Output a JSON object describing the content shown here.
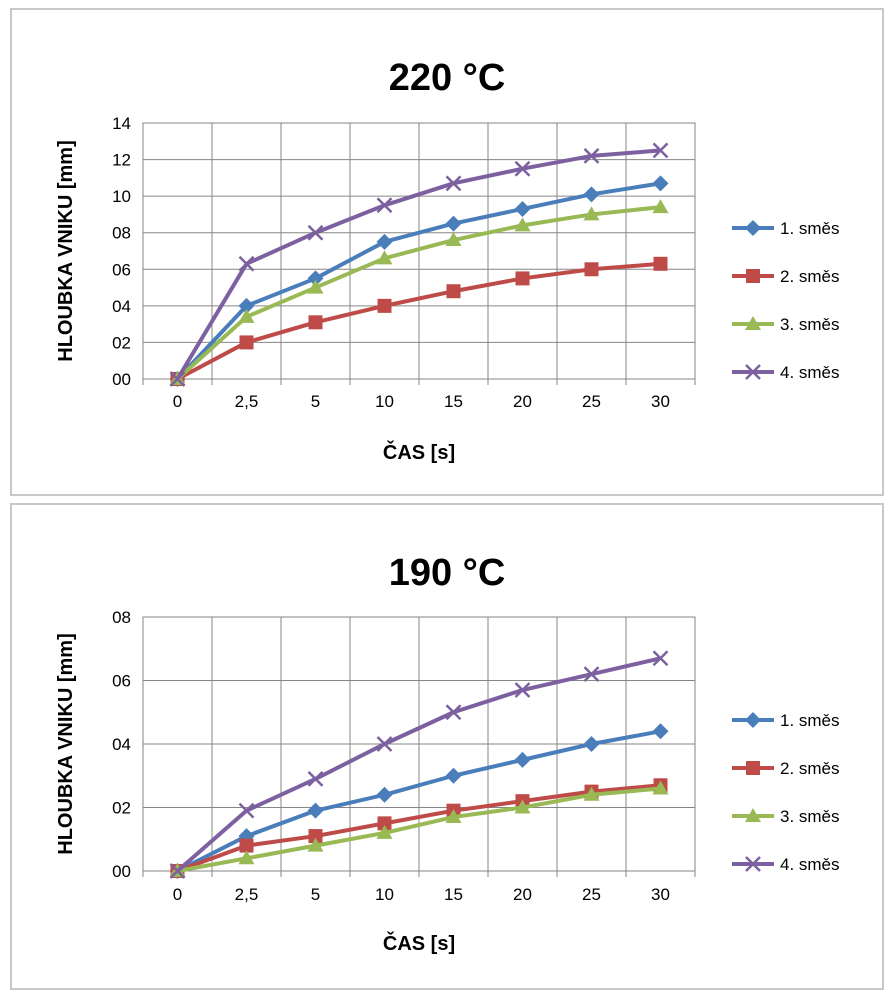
{
  "chart_data": [
    {
      "type": "line",
      "title": "220 °C",
      "xlabel": "ČAS [s]",
      "ylabel": "HLOUBKA VNIKU [mm]",
      "categories": [
        "0",
        "2,5",
        "5",
        "10",
        "15",
        "20",
        "25",
        "30"
      ],
      "ylim": [
        0,
        14
      ],
      "yticks": [
        0,
        2,
        4,
        6,
        8,
        10,
        12,
        14
      ],
      "ytick_labels": [
        "00",
        "02",
        "04",
        "06",
        "08",
        "10",
        "12",
        "14"
      ],
      "grid": true,
      "legend_position": "right",
      "series": [
        {
          "name": "1. směs",
          "color": "#4a7ebb",
          "marker": "diamond",
          "values": [
            0,
            4.0,
            5.5,
            7.5,
            8.5,
            9.3,
            10.1,
            10.7
          ]
        },
        {
          "name": "2. směs",
          "color": "#be4b48",
          "marker": "square",
          "values": [
            0,
            2.0,
            3.1,
            4.0,
            4.8,
            5.5,
            6.0,
            6.3
          ]
        },
        {
          "name": "3. směs",
          "color": "#98b954",
          "marker": "triangle",
          "values": [
            0,
            3.4,
            5.0,
            6.6,
            7.6,
            8.4,
            9.0,
            9.4
          ]
        },
        {
          "name": "4. směs",
          "color": "#7d60a0",
          "marker": "x",
          "values": [
            0,
            6.3,
            8.0,
            9.5,
            10.7,
            11.5,
            12.2,
            12.5
          ]
        }
      ]
    },
    {
      "type": "line",
      "title": "190 °C",
      "xlabel": "ČAS [s]",
      "ylabel": "HLOUBKA VNIKU [mm]",
      "categories": [
        "0",
        "2,5",
        "5",
        "10",
        "15",
        "20",
        "25",
        "30"
      ],
      "ylim": [
        0,
        8
      ],
      "yticks": [
        0,
        2,
        4,
        6,
        8
      ],
      "ytick_labels": [
        "00",
        "02",
        "04",
        "06",
        "08"
      ],
      "grid": true,
      "legend_position": "right",
      "series": [
        {
          "name": "1. směs",
          "color": "#4a7ebb",
          "marker": "diamond",
          "values": [
            0,
            1.1,
            1.9,
            2.4,
            3.0,
            3.5,
            4.0,
            4.4
          ]
        },
        {
          "name": "2. směs",
          "color": "#be4b48",
          "marker": "square",
          "values": [
            0,
            0.8,
            1.1,
            1.5,
            1.9,
            2.2,
            2.5,
            2.7
          ]
        },
        {
          "name": "3. směs",
          "color": "#98b954",
          "marker": "triangle",
          "values": [
            0,
            0.4,
            0.8,
            1.2,
            1.7,
            2.0,
            2.4,
            2.6
          ]
        },
        {
          "name": "4. směs",
          "color": "#7d60a0",
          "marker": "x",
          "values": [
            0,
            1.9,
            2.9,
            4.0,
            5.0,
            5.7,
            6.2,
            6.7
          ]
        }
      ]
    }
  ]
}
